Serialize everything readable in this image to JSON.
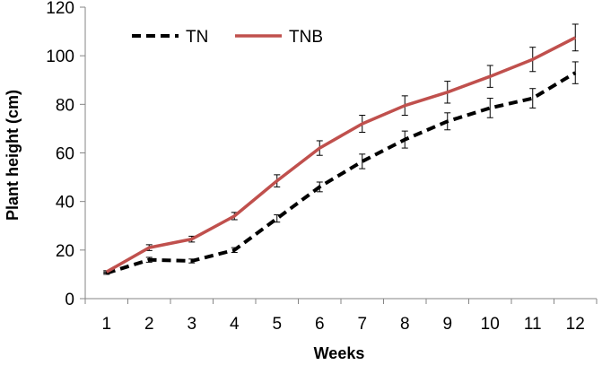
{
  "chart_data": {
    "type": "line",
    "xlabel": "Weeks",
    "ylabel": "Plant height (cm)",
    "categories": [
      "1",
      "2",
      "3",
      "4",
      "5",
      "6",
      "7",
      "8",
      "9",
      "10",
      "11",
      "12"
    ],
    "ylim": [
      0,
      120
    ],
    "yticks": [
      0,
      20,
      40,
      60,
      80,
      100,
      120
    ],
    "grid": false,
    "legend_position": "top-left",
    "series": [
      {
        "name": "TN",
        "color": "#000000",
        "style": "dashed",
        "values": [
          10.5,
          16,
          15.5,
          20,
          33,
          46,
          56.5,
          65.5,
          73,
          78.5,
          82.5,
          93
        ],
        "errors": [
          0.5,
          1,
          0.8,
          1,
          1.5,
          2,
          3,
          3.5,
          3.5,
          4,
          4,
          4.5
        ]
      },
      {
        "name": "TNB",
        "color": "#C0504D",
        "style": "solid",
        "values": [
          11,
          21,
          24.5,
          34,
          48.5,
          62,
          72,
          79.5,
          85,
          91.5,
          98.5,
          107.5
        ],
        "errors": [
          0.5,
          1.2,
          1.2,
          1.5,
          2.5,
          3,
          3.5,
          4,
          4.5,
          4.5,
          5,
          5.5
        ]
      }
    ]
  }
}
